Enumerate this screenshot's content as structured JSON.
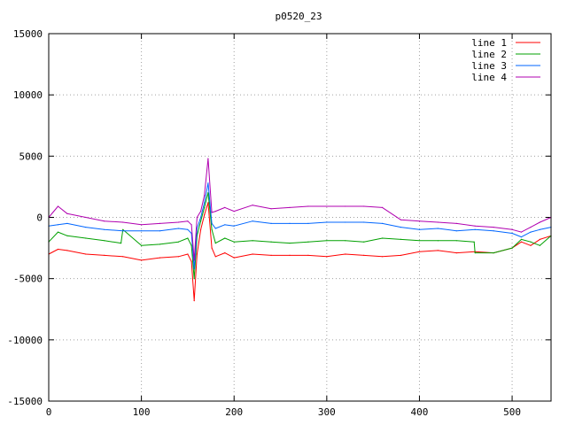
{
  "chart_data": {
    "type": "line",
    "title": "p0520_23",
    "xlabel": "",
    "ylabel": "",
    "xlim": [
      0,
      542
    ],
    "ylim": [
      -15000,
      15000
    ],
    "xticks": [
      0,
      100,
      200,
      300,
      400,
      500
    ],
    "yticks": [
      -15000,
      -10000,
      -5000,
      0,
      5000,
      10000,
      15000
    ],
    "xtick_labels": [
      "0",
      "100",
      "200",
      "300",
      "400",
      "500"
    ],
    "ytick_labels": [
      "-15000",
      "-10000",
      "-5000",
      "0",
      "5000",
      "10000",
      "15000"
    ],
    "grid": true,
    "legend_position": "top-right",
    "series": [
      {
        "name": "line 1",
        "color": "#ff0000",
        "x": [
          0,
          10,
          20,
          40,
          60,
          80,
          100,
          120,
          140,
          150,
          154,
          157,
          160,
          164,
          168,
          172,
          176,
          180,
          190,
          200,
          220,
          240,
          260,
          280,
          300,
          320,
          340,
          360,
          380,
          400,
          420,
          440,
          460,
          480,
          500,
          510,
          520,
          530,
          542
        ],
        "y": [
          -3000,
          -2600,
          -2700,
          -3000,
          -3100,
          -3200,
          -3500,
          -3300,
          -3200,
          -3000,
          -3600,
          -6800,
          -3000,
          -1000,
          200,
          1200,
          -2500,
          -3200,
          -2900,
          -3300,
          -3000,
          -3100,
          -3100,
          -3100,
          -3200,
          -3000,
          -3100,
          -3200,
          -3100,
          -2800,
          -2700,
          -2900,
          -2800,
          -2900,
          -2500,
          -2000,
          -2300,
          -1800,
          -1500
        ]
      },
      {
        "name": "line 2",
        "color": "#00a000",
        "x": [
          0,
          10,
          20,
          40,
          60,
          78,
          80,
          100,
          120,
          140,
          150,
          154,
          157,
          160,
          164,
          168,
          172,
          176,
          180,
          190,
          200,
          220,
          240,
          260,
          280,
          300,
          320,
          340,
          360,
          380,
          400,
          420,
          440,
          459,
          460,
          480,
          500,
          510,
          520,
          530,
          542
        ],
        "y": [
          -2000,
          -1200,
          -1500,
          -1700,
          -1900,
          -2100,
          -1000,
          -2300,
          -2200,
          -2000,
          -1700,
          -2300,
          -5000,
          -1500,
          -300,
          800,
          2000,
          -1000,
          -2100,
          -1700,
          -2000,
          -1900,
          -2000,
          -2100,
          -2000,
          -1900,
          -1900,
          -2000,
          -1700,
          -1800,
          -1900,
          -1900,
          -1900,
          -2000,
          -2900,
          -2900,
          -2500,
          -1800,
          -2000,
          -2300,
          -1500
        ]
      },
      {
        "name": "line 3",
        "color": "#0066ff",
        "x": [
          0,
          10,
          20,
          40,
          60,
          80,
          100,
          120,
          140,
          150,
          154,
          157,
          160,
          164,
          168,
          172,
          176,
          180,
          190,
          200,
          220,
          240,
          260,
          280,
          300,
          320,
          340,
          360,
          380,
          400,
          420,
          440,
          460,
          480,
          500,
          510,
          520,
          530,
          542
        ],
        "y": [
          -700,
          -600,
          -500,
          -800,
          -1000,
          -1100,
          -1100,
          -1100,
          -900,
          -1000,
          -1300,
          -4200,
          -900,
          0,
          1200,
          2800,
          -500,
          -900,
          -600,
          -700,
          -300,
          -500,
          -500,
          -500,
          -400,
          -400,
          -400,
          -500,
          -800,
          -1000,
          -900,
          -1100,
          -1000,
          -1100,
          -1300,
          -1600,
          -1200,
          -1000,
          -800
        ]
      },
      {
        "name": "line 4",
        "color": "#b000b0",
        "x": [
          0,
          10,
          20,
          40,
          60,
          80,
          100,
          120,
          140,
          150,
          154,
          157,
          160,
          164,
          168,
          172,
          176,
          180,
          190,
          200,
          220,
          240,
          260,
          280,
          300,
          320,
          340,
          360,
          380,
          400,
          420,
          440,
          460,
          480,
          500,
          510,
          520,
          530,
          542
        ],
        "y": [
          0,
          900,
          300,
          0,
          -300,
          -400,
          -600,
          -500,
          -400,
          -300,
          -600,
          -3500,
          0,
          500,
          1800,
          4800,
          400,
          500,
          800,
          500,
          1000,
          700,
          800,
          900,
          900,
          900,
          900,
          800,
          -200,
          -300,
          -400,
          -500,
          -700,
          -800,
          -1000,
          -1200,
          -800,
          -400,
          0
        ]
      }
    ]
  }
}
